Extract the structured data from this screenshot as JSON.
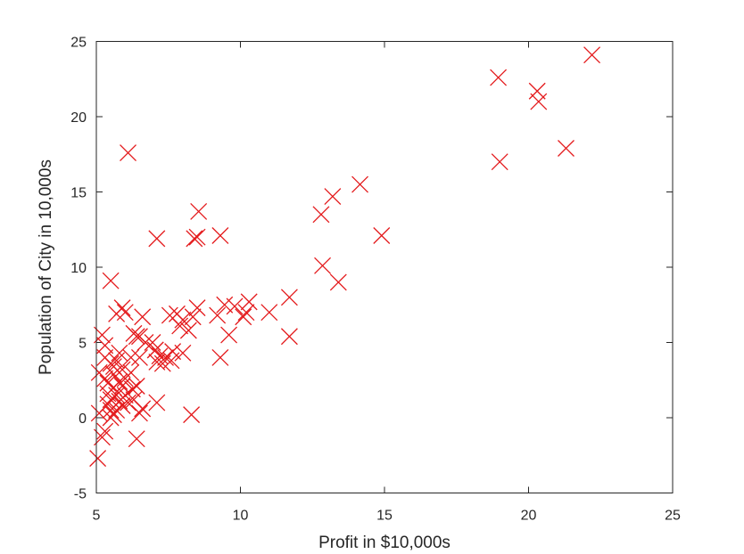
{
  "chart_data": {
    "type": "scatter",
    "title": "",
    "xlabel": "Profit in $10,000s",
    "ylabel": "Population of City in 10,000s",
    "xlim": [
      5,
      25
    ],
    "ylim": [
      -5,
      25
    ],
    "xticks": [
      5,
      10,
      15,
      20,
      25
    ],
    "yticks": [
      -5,
      0,
      5,
      10,
      15,
      20,
      25
    ],
    "xtick_labels": [
      "5",
      "10",
      "15",
      "20",
      "25"
    ],
    "ytick_labels": [
      "-5",
      "0",
      "5",
      "10",
      "15",
      "20",
      "25"
    ],
    "grid": false,
    "legend": "none",
    "marker": "x",
    "marker_color": "#e41a1c",
    "series": [
      {
        "x": [
          22.2,
          18.95,
          20.3,
          20.35,
          19.0,
          21.3,
          6.1,
          14.15,
          13.2,
          12.8,
          14.9,
          12.85,
          13.4,
          11.7,
          11.7,
          11.0,
          10.3,
          10.2,
          10.1,
          9.8,
          9.3,
          9.2,
          9.6,
          9.3,
          9.45,
          8.55,
          8.4,
          8.5,
          7.1,
          8.5,
          8.35,
          8.0,
          7.8,
          7.55,
          7.9,
          8.2,
          8.0,
          7.65,
          7.4,
          7.6,
          7.2,
          7.05,
          7.3,
          7.1,
          7.05,
          6.95,
          6.7,
          6.5,
          6.6,
          6.4,
          6.3,
          6.5,
          6.2,
          6.2,
          6.4,
          6.25,
          6.6,
          6.3,
          6.5,
          6.4,
          8.3,
          7.1,
          5.9,
          5.7,
          5.5,
          6.0,
          5.8,
          5.7,
          5.9,
          5.5,
          5.3,
          5.2,
          5.1,
          5.3,
          5.4,
          5.6,
          5.8,
          5.7,
          5.5,
          5.4,
          5.5,
          5.9,
          6.0,
          5.7,
          5.6,
          5.3,
          5.2,
          5.05,
          5.4,
          5.6,
          5.6,
          5.8,
          5.9,
          5.1,
          5.5,
          5.3,
          6.1,
          6.0
        ],
        "y": [
          24.1,
          22.6,
          21.7,
          21.0,
          17.0,
          17.9,
          17.6,
          15.5,
          14.7,
          13.5,
          12.1,
          10.1,
          9.0,
          8.0,
          5.4,
          7.0,
          7.7,
          7.0,
          6.7,
          7.4,
          12.1,
          6.8,
          5.5,
          4.0,
          7.5,
          13.7,
          11.9,
          12.0,
          11.9,
          7.3,
          6.7,
          6.5,
          6.9,
          6.8,
          6.1,
          5.8,
          4.3,
          4.4,
          4.0,
          3.8,
          4.1,
          4.5,
          3.6,
          1.0,
          4.5,
          5.0,
          5.0,
          5.4,
          6.7,
          5.4,
          5.6,
          4.0,
          4.0,
          3.0,
          2.1,
          1.9,
          0.6,
          1.2,
          0.3,
          -1.4,
          0.2,
          3.7,
          7.3,
          6.9,
          9.1,
          7.0,
          4.3,
          3.8,
          3.2,
          3.6,
          4.0,
          5.5,
          3.0,
          2.6,
          2.3,
          2.0,
          2.4,
          1.5,
          1.2,
          0.9,
          0.5,
          0.8,
          1.5,
          0.5,
          0.2,
          -0.9,
          -1.3,
          -2.7,
          1.6,
          2.9,
          3.4,
          1.1,
          2.1,
          0.3,
          0.0,
          4.8,
          1.0,
          2.6
        ]
      }
    ]
  }
}
